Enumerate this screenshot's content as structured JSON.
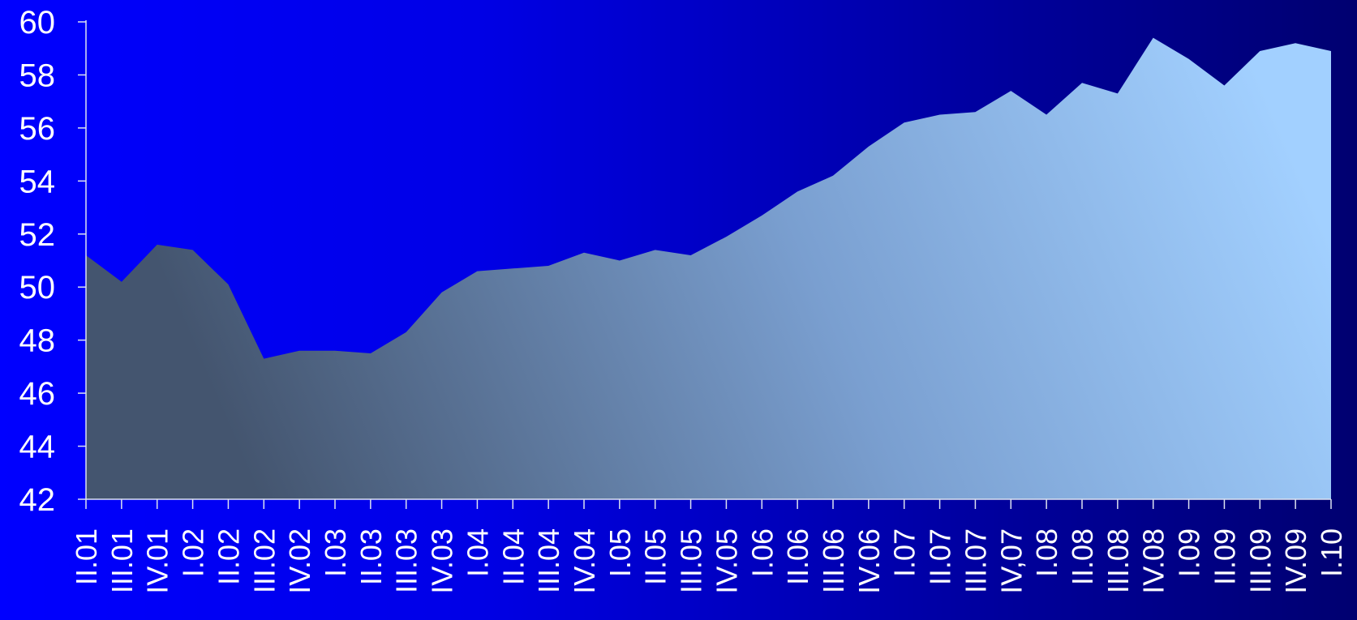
{
  "chart_data": {
    "type": "area",
    "title": "",
    "xlabel": "",
    "ylabel": "",
    "ylim": [
      42,
      60
    ],
    "yticks": [
      60,
      58,
      56,
      54,
      52,
      50,
      48,
      46,
      44,
      42
    ],
    "grid": false,
    "legend": "none",
    "categories": [
      "II.01",
      "III.01",
      "IV.01",
      "I.02",
      "II.02",
      "III.02",
      "IV.02",
      "I.03",
      "II.03",
      "III.03",
      "IV.03",
      "I.04",
      "II.04",
      "III.04",
      "IV.04",
      "I.05",
      "II.05",
      "III.05",
      "IV.05",
      "I.06",
      "II.06",
      "III.06",
      "IV.06",
      "I.07",
      "II.07",
      "III.07",
      "IV,07",
      "I.08",
      "II.08",
      "III.08",
      "IV.08",
      "I.09",
      "II.09",
      "III.09",
      "IV.09",
      "I.10"
    ],
    "series": [
      {
        "values": [
          51.2,
          50.2,
          51.6,
          51.4,
          50.1,
          47.3,
          47.6,
          47.6,
          47.5,
          48.3,
          49.8,
          50.6,
          50.7,
          50.8,
          51.3,
          51.0,
          51.4,
          51.2,
          51.9,
          52.7,
          53.6,
          54.2,
          55.3,
          56.2,
          56.5,
          56.6,
          57.4,
          56.5,
          57.7,
          57.3,
          59.4,
          58.6,
          57.6,
          58.9,
          59.2,
          58.9
        ]
      }
    ],
    "colors": {
      "fill_dark": "#44556f",
      "fill_mid": "#7a9fd0",
      "fill_light": "#a2d0ff",
      "text": "#ffffff",
      "axis": "#dde3f0"
    }
  }
}
